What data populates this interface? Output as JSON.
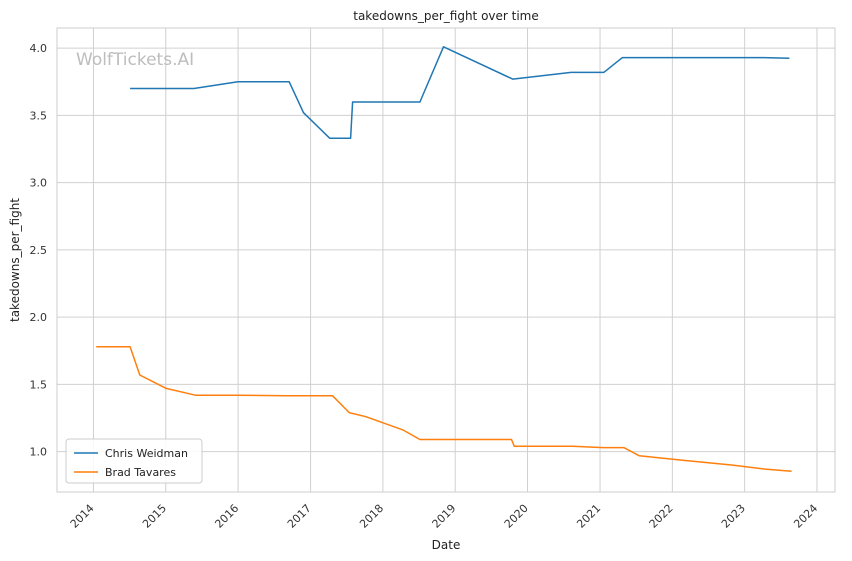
{
  "chart_data": {
    "type": "line",
    "title": "takedowns_per_fight over time",
    "xlabel": "Date",
    "ylabel": "takedowns_per_fight",
    "watermark": "WolfTickets.AI",
    "xlim": [
      "2013-07-01",
      "2024-04-01"
    ],
    "ylim": [
      0.7,
      4.15
    ],
    "x_ticks": [
      "2014",
      "2015",
      "2016",
      "2017",
      "2018",
      "2019",
      "2020",
      "2021",
      "2022",
      "2023",
      "2024"
    ],
    "y_ticks": [
      "1.0",
      "1.5",
      "2.0",
      "2.5",
      "3.0",
      "3.5",
      "4.0"
    ],
    "grid": true,
    "legend_position": "lower-left",
    "series": [
      {
        "name": "Chris Weidman",
        "color": "#1f77b4",
        "points": [
          [
            "2014-07-05",
            3.7
          ],
          [
            "2015-05-23",
            3.7
          ],
          [
            "2015-12-31",
            3.75
          ],
          [
            "2016-09-15",
            3.75
          ],
          [
            "2016-11-26",
            3.52
          ],
          [
            "2017-04-08",
            3.33
          ],
          [
            "2017-07-22",
            3.33
          ],
          [
            "2017-08-01",
            3.6
          ],
          [
            "2018-07-07",
            3.6
          ],
          [
            "2018-11-03",
            4.01
          ],
          [
            "2019-10-18",
            3.77
          ],
          [
            "2020-08-08",
            3.82
          ],
          [
            "2021-01-20",
            3.82
          ],
          [
            "2021-04-24",
            3.93
          ],
          [
            "2023-04-08",
            3.93
          ],
          [
            "2023-08-15",
            3.925
          ]
        ]
      },
      {
        "name": "Brad Tavares",
        "color": "#ff7f0e",
        "points": [
          [
            "2014-01-15",
            1.78
          ],
          [
            "2014-07-05",
            1.78
          ],
          [
            "2014-08-23",
            1.57
          ],
          [
            "2015-01-03",
            1.47
          ],
          [
            "2015-05-30",
            1.42
          ],
          [
            "2015-12-31",
            1.42
          ],
          [
            "2016-09-01",
            1.415
          ],
          [
            "2017-04-22",
            1.415
          ],
          [
            "2017-07-15",
            1.29
          ],
          [
            "2017-10-07",
            1.26
          ],
          [
            "2018-04-14",
            1.16
          ],
          [
            "2018-07-07",
            1.09
          ],
          [
            "2019-10-12",
            1.09
          ],
          [
            "2019-10-26",
            1.04
          ],
          [
            "2020-08-15",
            1.04
          ],
          [
            "2021-01-16",
            1.03
          ],
          [
            "2021-05-01",
            1.03
          ],
          [
            "2021-07-17",
            0.97
          ],
          [
            "2022-03-01",
            0.935
          ],
          [
            "2022-11-01",
            0.9
          ],
          [
            "2023-04-15",
            0.87
          ],
          [
            "2023-08-26",
            0.855
          ]
        ]
      }
    ]
  }
}
